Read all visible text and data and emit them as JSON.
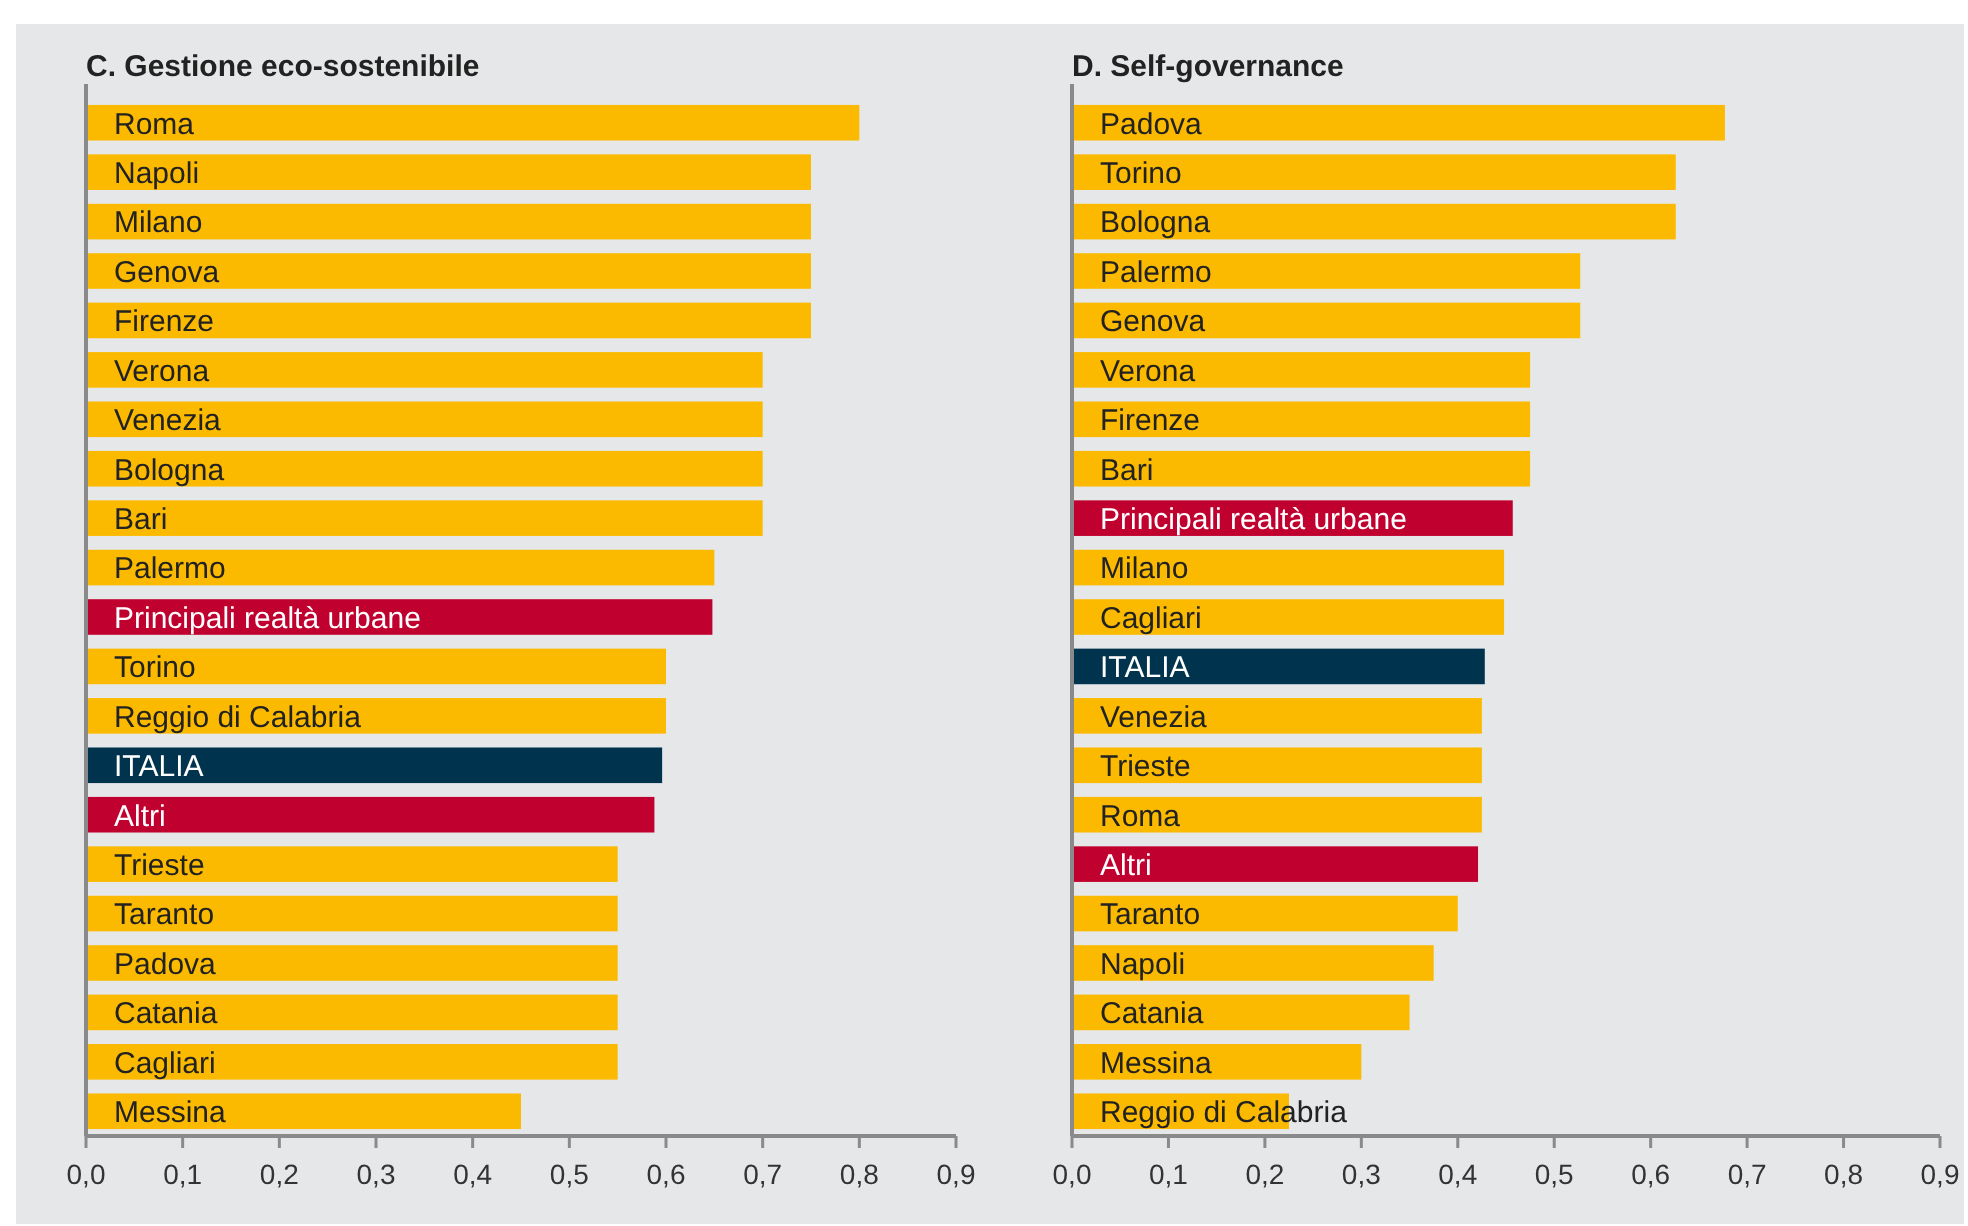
{
  "chart_data": [
    {
      "type": "bar",
      "orientation": "horizontal",
      "title": "C. Gestione eco-sostenibile",
      "categories": [
        "Roma",
        "Napoli",
        "Milano",
        "Genova",
        "Firenze",
        "Verona",
        "Venezia",
        "Bologna",
        "Bari",
        "Palermo",
        "Principali realtà urbane",
        "Torino",
        "Reggio di Calabria",
        "ITALIA",
        "Altri",
        "Trieste",
        "Taranto",
        "Padova",
        "Catania",
        "Cagliari",
        "Messina"
      ],
      "values": [
        0.8,
        0.75,
        0.75,
        0.75,
        0.75,
        0.7,
        0.7,
        0.7,
        0.7,
        0.65,
        0.648,
        0.6,
        0.6,
        0.596,
        0.588,
        0.55,
        0.55,
        0.55,
        0.55,
        0.55,
        0.45
      ],
      "colors": [
        "#fbba00",
        "#fbba00",
        "#fbba00",
        "#fbba00",
        "#fbba00",
        "#fbba00",
        "#fbba00",
        "#fbba00",
        "#fbba00",
        "#fbba00",
        "#c0002f",
        "#fbba00",
        "#fbba00",
        "#00334d",
        "#c0002f",
        "#fbba00",
        "#fbba00",
        "#fbba00",
        "#fbba00",
        "#fbba00",
        "#fbba00"
      ],
      "xlim": [
        0,
        0.9
      ],
      "xticks": [
        {
          "value": 0,
          "label": "0,0"
        },
        {
          "value": 0.1,
          "label": "0,1"
        },
        {
          "value": 0.2,
          "label": "0,2"
        },
        {
          "value": 0.3,
          "label": "0,3"
        },
        {
          "value": 0.4,
          "label": "0,4"
        },
        {
          "value": 0.5,
          "label": "0,5"
        },
        {
          "value": 0.6,
          "label": "0,6"
        },
        {
          "value": 0.7,
          "label": "0,7"
        },
        {
          "value": 0.8,
          "label": "0,8"
        },
        {
          "value": 0.9,
          "label": "0,9"
        }
      ]
    },
    {
      "type": "bar",
      "orientation": "horizontal",
      "title": "D. Self-governance",
      "categories": [
        "Padova",
        "Torino",
        "Bologna",
        "Palermo",
        "Genova",
        "Verona",
        "Firenze",
        "Bari",
        "Principali realtà urbane",
        "Milano",
        "Cagliari",
        "ITALIA",
        "Venezia",
        "Trieste",
        "Roma",
        "Altri",
        "Taranto",
        "Napoli",
        "Catania",
        "Messina",
        "Reggio di Calabria"
      ],
      "values": [
        0.677,
        0.626,
        0.626,
        0.527,
        0.527,
        0.475,
        0.475,
        0.475,
        0.457,
        0.448,
        0.448,
        0.428,
        0.425,
        0.425,
        0.425,
        0.421,
        0.4,
        0.375,
        0.35,
        0.3,
        0.225
      ],
      "colors": [
        "#fbba00",
        "#fbba00",
        "#fbba00",
        "#fbba00",
        "#fbba00",
        "#fbba00",
        "#fbba00",
        "#fbba00",
        "#c0002f",
        "#fbba00",
        "#fbba00",
        "#00334d",
        "#fbba00",
        "#fbba00",
        "#fbba00",
        "#c0002f",
        "#fbba00",
        "#fbba00",
        "#fbba00",
        "#fbba00",
        "#fbba00"
      ],
      "xlim": [
        0,
        0.9
      ],
      "xticks": [
        {
          "value": 0,
          "label": "0,0"
        },
        {
          "value": 0.1,
          "label": "0,1"
        },
        {
          "value": 0.2,
          "label": "0,2"
        },
        {
          "value": 0.3,
          "label": "0,3"
        },
        {
          "value": 0.4,
          "label": "0,4"
        },
        {
          "value": 0.5,
          "label": "0,5"
        },
        {
          "value": 0.6,
          "label": "0,6"
        },
        {
          "value": 0.7,
          "label": "0,7"
        },
        {
          "value": 0.8,
          "label": "0,8"
        },
        {
          "value": 0.9,
          "label": "0,9"
        }
      ]
    }
  ]
}
